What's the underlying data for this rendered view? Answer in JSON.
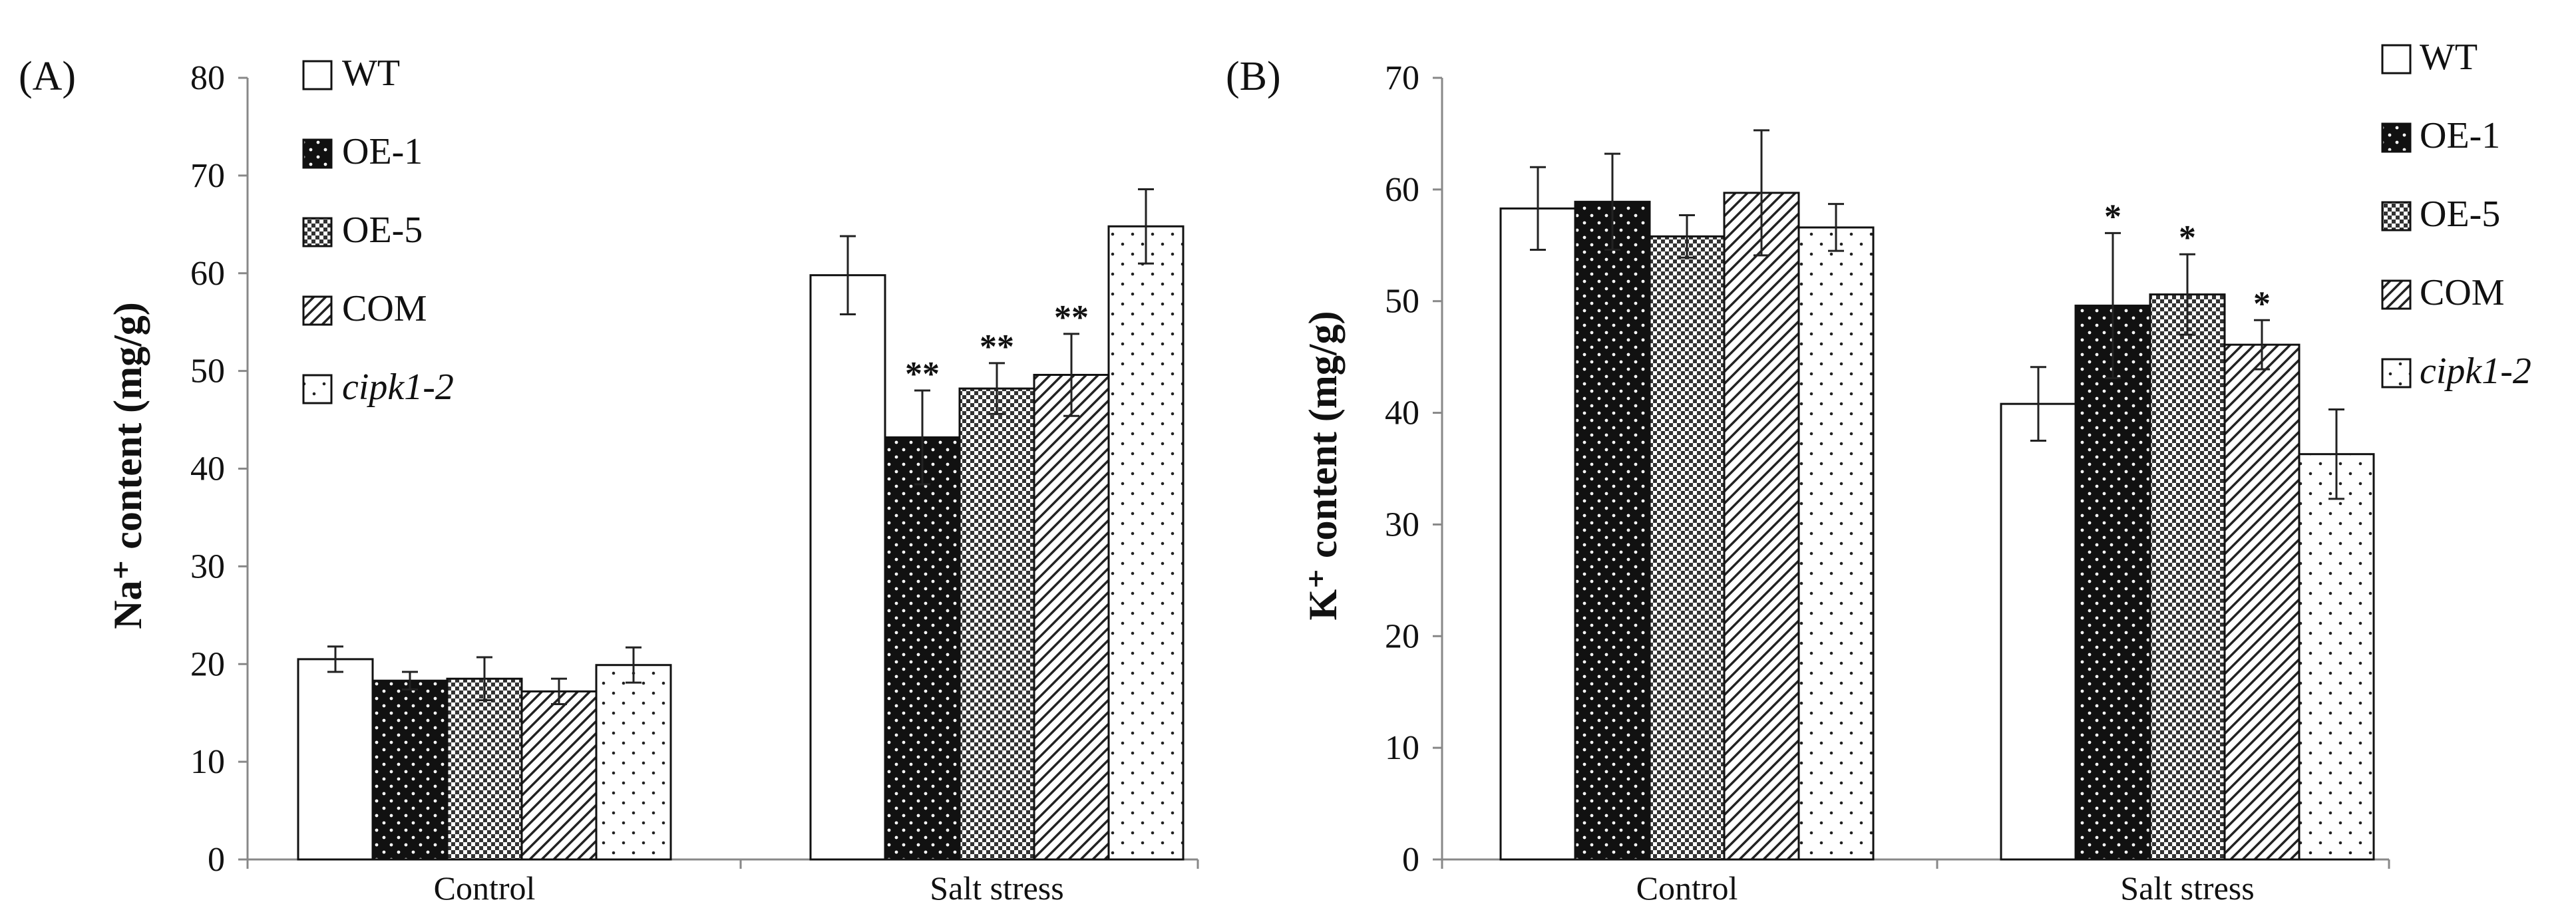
{
  "chart_data": [
    {
      "type": "bar",
      "panel_label": "(A)",
      "title": "",
      "xlabel": "",
      "ylabel": "Na⁺ content (mg/g)",
      "ylim": [
        0,
        80
      ],
      "yticks": [
        "0",
        "10",
        "20",
        "30",
        "40",
        "50",
        "60",
        "70",
        "80"
      ],
      "categories": [
        "Control",
        "Salt stress"
      ],
      "legend_position": "top-left",
      "series": [
        {
          "name": "WT",
          "italic": false,
          "pattern": "white",
          "values": [
            20.5,
            59.8
          ],
          "errors": [
            1.3,
            4.0
          ],
          "sig": [
            "",
            ""
          ]
        },
        {
          "name": "OE-1",
          "italic": false,
          "pattern": "black-dots",
          "values": [
            18.3,
            43.2
          ],
          "errors": [
            0.9,
            4.8
          ],
          "sig": [
            "",
            "**"
          ]
        },
        {
          "name": "OE-5",
          "italic": false,
          "pattern": "checker",
          "values": [
            18.5,
            48.2
          ],
          "errors": [
            2.2,
            2.6
          ],
          "sig": [
            "",
            "**"
          ]
        },
        {
          "name": "COM",
          "italic": false,
          "pattern": "diagonal",
          "values": [
            17.2,
            49.6
          ],
          "errors": [
            1.3,
            4.2
          ],
          "sig": [
            "",
            "**"
          ]
        },
        {
          "name": "cipk1-2",
          "italic": true,
          "pattern": "light-dots",
          "values": [
            19.9,
            64.8
          ],
          "errors": [
            1.8,
            3.8
          ],
          "sig": [
            "",
            ""
          ]
        }
      ]
    },
    {
      "type": "bar",
      "panel_label": "(B)",
      "title": "",
      "xlabel": "",
      "ylabel": "K⁺ content (mg/g)",
      "ylim": [
        0,
        70
      ],
      "yticks": [
        "0",
        "10",
        "20",
        "30",
        "40",
        "50",
        "60",
        "70"
      ],
      "categories": [
        "Control",
        "Salt stress"
      ],
      "legend_position": "top-right",
      "series": [
        {
          "name": "WT",
          "italic": false,
          "pattern": "white",
          "values": [
            58.3,
            40.8
          ],
          "errors": [
            3.7,
            3.3
          ],
          "sig": [
            "",
            ""
          ]
        },
        {
          "name": "OE-1",
          "italic": false,
          "pattern": "black-dots",
          "values": [
            58.9,
            49.6
          ],
          "errors": [
            4.3,
            6.5
          ],
          "sig": [
            "",
            "*"
          ]
        },
        {
          "name": "OE-5",
          "italic": false,
          "pattern": "checker",
          "values": [
            55.8,
            50.6
          ],
          "errors": [
            1.9,
            3.6
          ],
          "sig": [
            "",
            "*"
          ]
        },
        {
          "name": "COM",
          "italic": false,
          "pattern": "diagonal",
          "values": [
            59.7,
            46.1
          ],
          "errors": [
            5.6,
            2.2
          ],
          "sig": [
            "",
            "*"
          ]
        },
        {
          "name": "cipk1-2",
          "italic": true,
          "pattern": "light-dots",
          "values": [
            56.6,
            36.3
          ],
          "errors": [
            2.1,
            4.0
          ],
          "sig": [
            "",
            ""
          ]
        }
      ]
    }
  ]
}
